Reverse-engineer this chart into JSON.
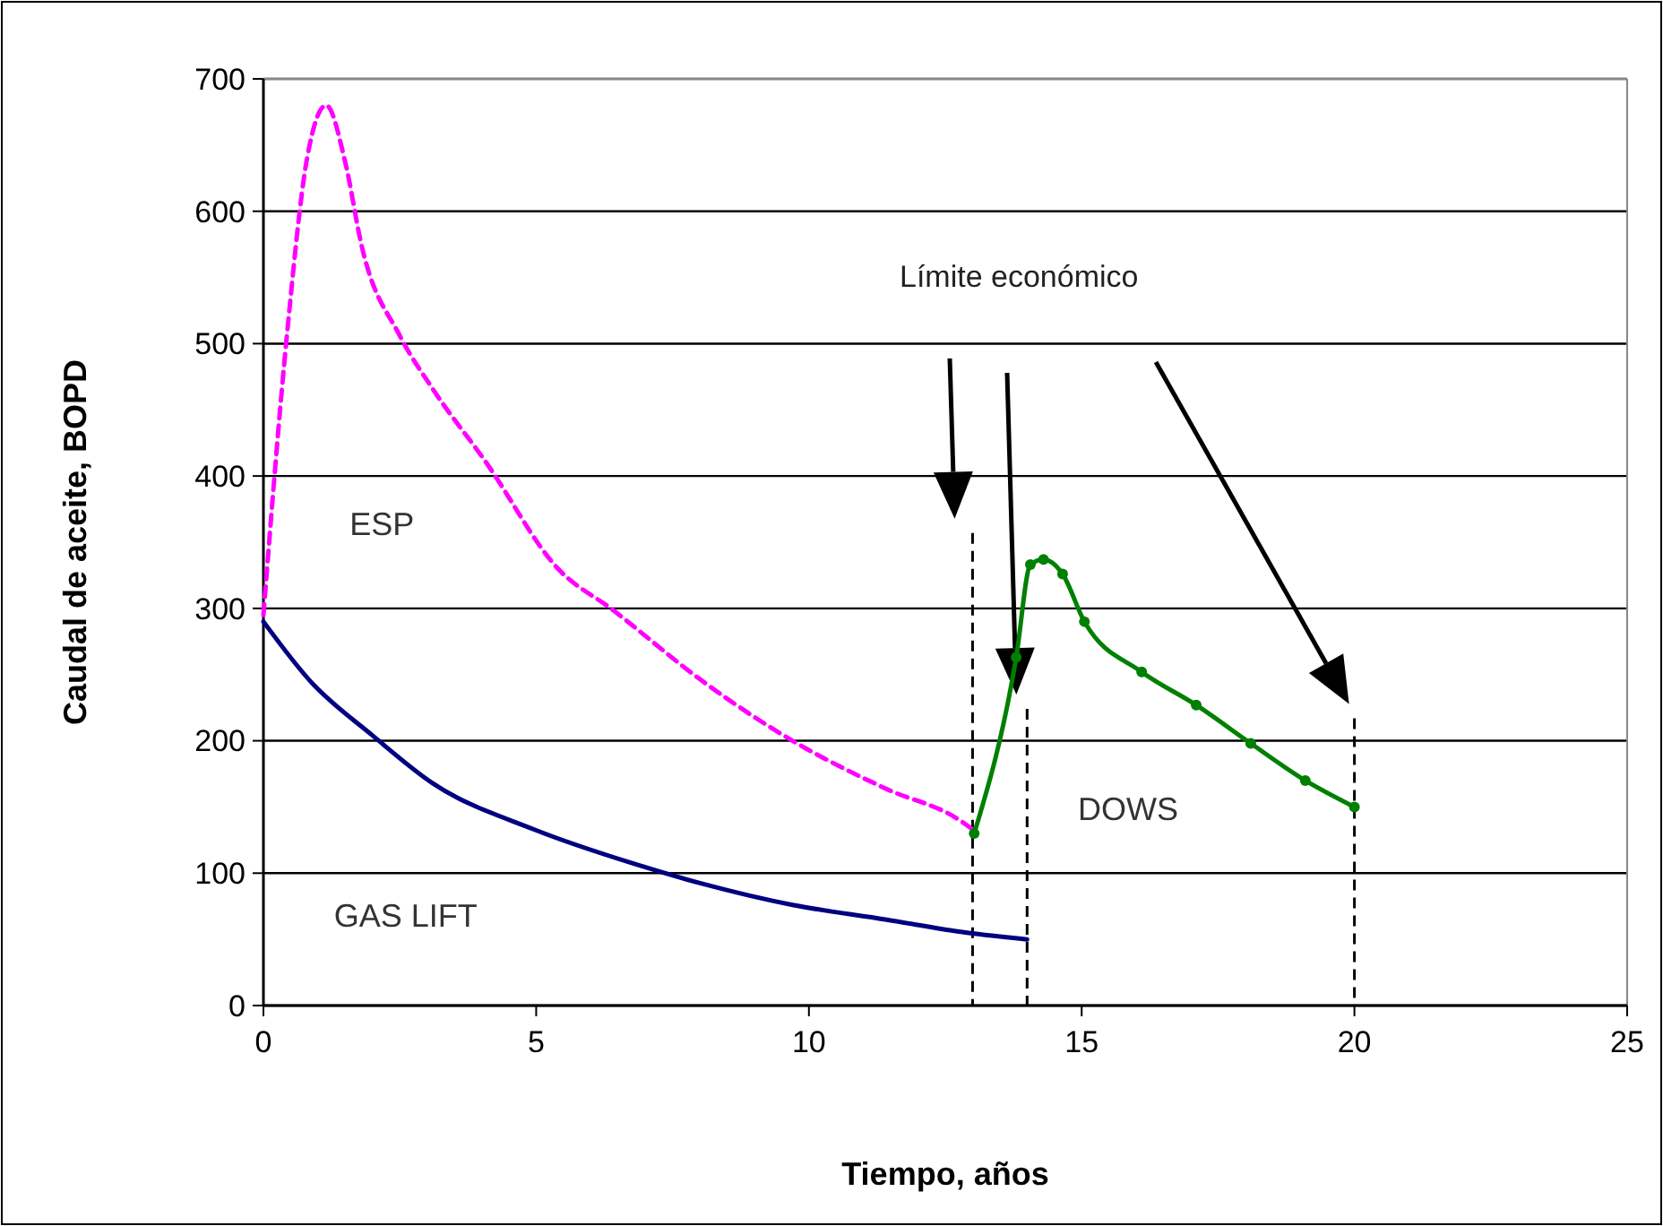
{
  "chart_data": {
    "type": "line",
    "xlabel": "Tiempo, años",
    "ylabel": "Caudal de aceite, BOPD",
    "xlim": [
      0,
      25
    ],
    "xticks": [
      0,
      5,
      10,
      15,
      20,
      25
    ],
    "ylim": [
      0,
      700
    ],
    "yticks": [
      0,
      100,
      200,
      300,
      400,
      500,
      600,
      700
    ],
    "grid": "y",
    "series": [
      {
        "name": "ESP",
        "color": "#ff00ff",
        "line_style": "dashed",
        "x": [
          0,
          0.43,
          0.8,
          1.15,
          1.5,
          1.8,
          2.5,
          3.1,
          4.07,
          5.4,
          6.4,
          8.05,
          9.7,
          11.4,
          12.8,
          13.0
        ],
        "values": [
          295,
          506,
          640,
          680,
          637,
          574,
          506,
          466,
          411,
          330,
          299,
          245,
          200,
          164,
          139,
          133
        ]
      },
      {
        "name": "GAS LIFT",
        "color": "#000080",
        "x": [
          0,
          0.86,
          2.0,
          3.1,
          4.96,
          6.8,
          8.05,
          9.7,
          11.4,
          12.9,
          14.0
        ],
        "values": [
          290,
          245,
          204,
          168,
          133,
          107,
          92,
          76,
          65,
          55,
          50
        ]
      },
      {
        "name": "DOWS",
        "color": "#008000",
        "marker": "circle",
        "x": [
          13.03,
          13.8,
          14.06,
          14.3,
          14.65,
          15.05,
          16.1,
          17.1,
          18.1,
          19.1,
          20.0
        ],
        "values": [
          130,
          263,
          333,
          337,
          326,
          290,
          252,
          227,
          198,
          170,
          150
        ]
      }
    ],
    "ref_lines": [
      {
        "axis": "x",
        "value": 13,
        "line_style": "dashed",
        "color": "#000000"
      },
      {
        "axis": "x",
        "value": 14,
        "line_style": "dashed",
        "color": "#000000"
      },
      {
        "axis": "x",
        "value": 20,
        "line_style": "dashed",
        "color": "#000000"
      }
    ],
    "annotations": [
      "Límite económico"
    ]
  }
}
